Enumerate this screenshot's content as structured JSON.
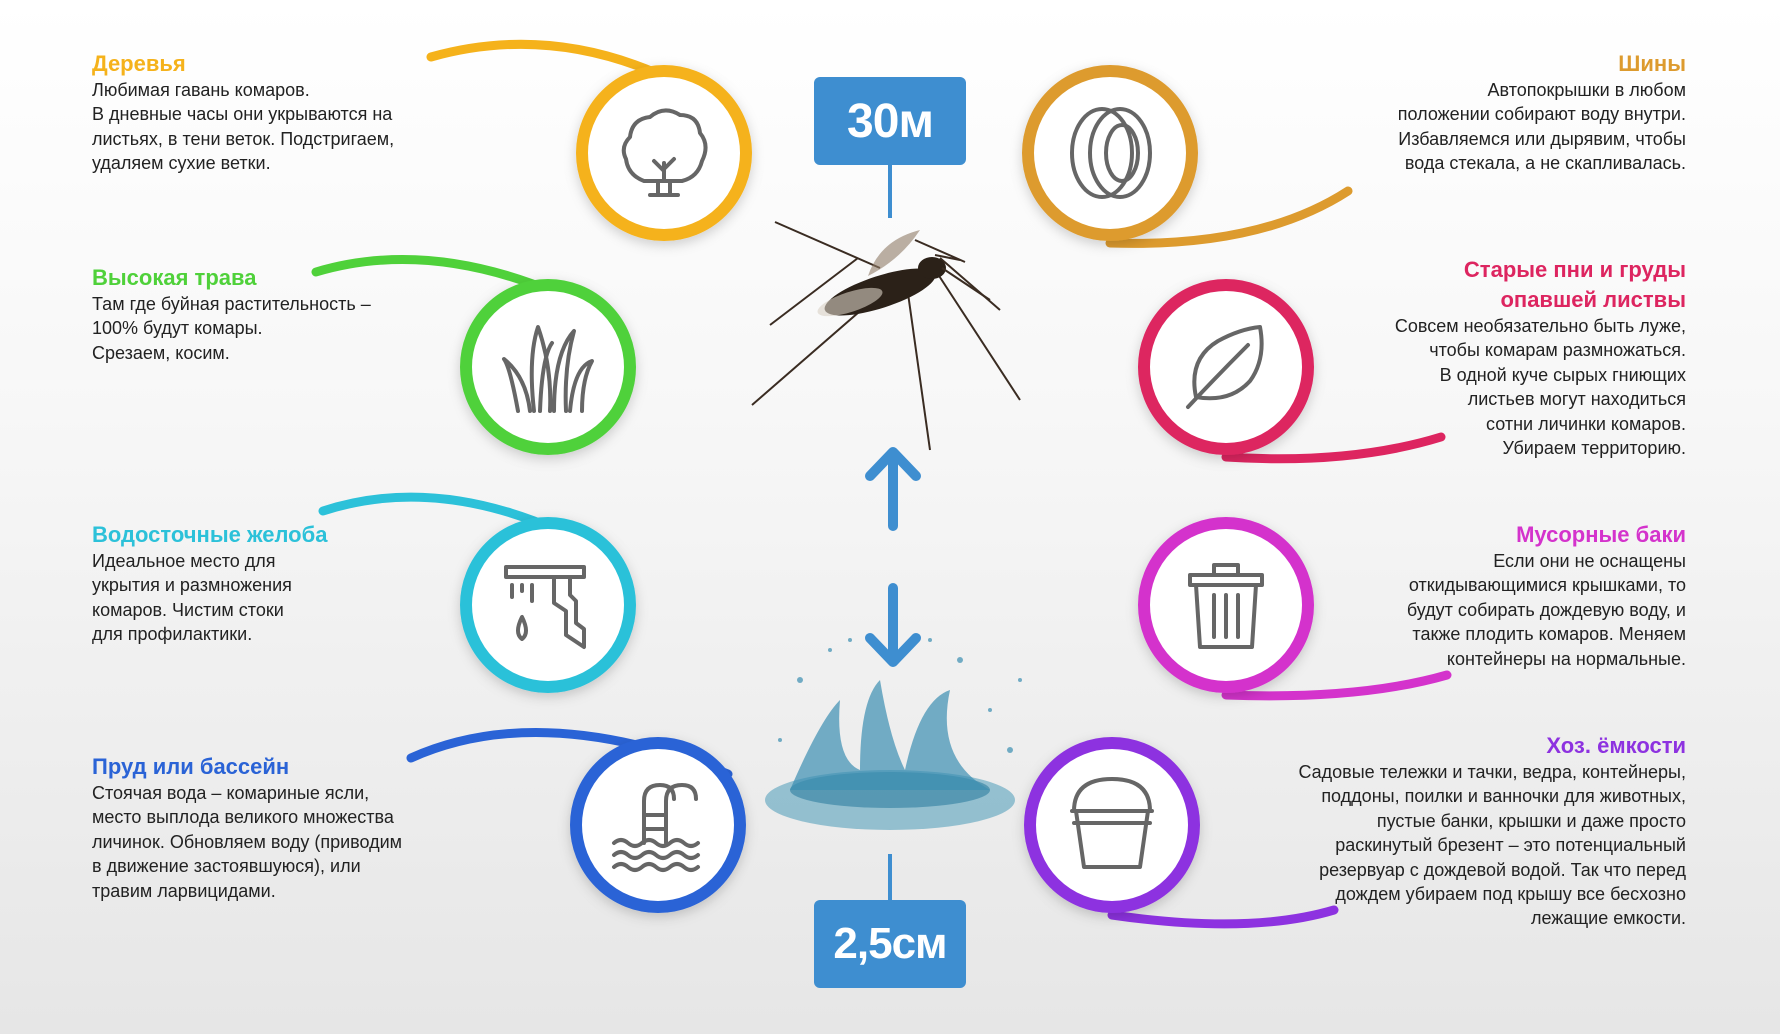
{
  "colors": {
    "trees": "#f5b21b",
    "grass": "#4fd13a",
    "gutters": "#2cc1d9",
    "pool": "#2a63d6",
    "tires": "#dd9b2e",
    "leaves": "#dd2560",
    "trash": "#d433cc",
    "containers": "#8d32e0",
    "badge": "#3e8ed0",
    "icon": "#666666"
  },
  "center": {
    "top_badge": "30м",
    "bottom_badge": "2,5см",
    "arrow_up_icon": "arrow-up",
    "arrow_down_icon": "arrow-down"
  },
  "left": [
    {
      "icon": "tree-icon",
      "title": "Деревья",
      "lines": [
        "Любимая гавань комаров.",
        "В дневные часы они укрываются на",
        "листьях, в тени веток. Подстригаем,",
        "удаляем сухие ветки."
      ]
    },
    {
      "icon": "grass-icon",
      "title": "Высокая трава",
      "lines": [
        "Там где буйная растительность –",
        "100% будут комары.",
        "Срезаем, косим."
      ]
    },
    {
      "icon": "gutter-icon",
      "title": "Водосточные желоба",
      "lines": [
        "Идеальное место для",
        "укрытия и размножения",
        "комаров. Чистим стоки",
        "для профилактики."
      ]
    },
    {
      "icon": "pool-icon",
      "title": "Пруд или бассейн",
      "lines": [
        "Стоячая вода – комариные ясли,",
        "место выплода великого множества",
        "личинок. Обновляем воду (приводим",
        "в движение застоявшуюся), или",
        "травим ларвицидами."
      ]
    }
  ],
  "right": [
    {
      "icon": "tire-icon",
      "title": "Шины",
      "lines": [
        "Автопокрышки в любом",
        "положении собирают воду внутри.",
        "Избавляемся или дырявим, чтобы",
        "вода стекала, а не скапливалась."
      ]
    },
    {
      "icon": "leaf-icon",
      "title": "Старые пни и груды",
      "title2": "опавшей листвы",
      "lines": [
        "Совсем необязательно быть луже,",
        "чтобы комарам размножаться.",
        "В одной куче сырых гниющих",
        "листьев могут находиться",
        "сотни личинки комаров.",
        "Убираем территорию."
      ]
    },
    {
      "icon": "trash-icon",
      "title": "Мусорные баки",
      "lines": [
        "Если они не оснащены",
        "откидывающимися крышками, то",
        "будут собирать дождевую воду, и",
        "также плодить комаров. Меняем",
        "контейнеры на нормальные."
      ]
    },
    {
      "icon": "bucket-icon",
      "title": "Хоз. ёмкости",
      "lines": [
        "Садовые тележки и тачки, ведра, контейнеры,",
        "поддоны, поилки и ванночки для животных,",
        "пустые банки, крышки и даже просто",
        "раскинутый брезент – это потенциальный",
        "резервуар с дождевой водой. Так что перед",
        "дождем убираем под крышу все бесхозно",
        "лежащие емкости."
      ]
    }
  ]
}
